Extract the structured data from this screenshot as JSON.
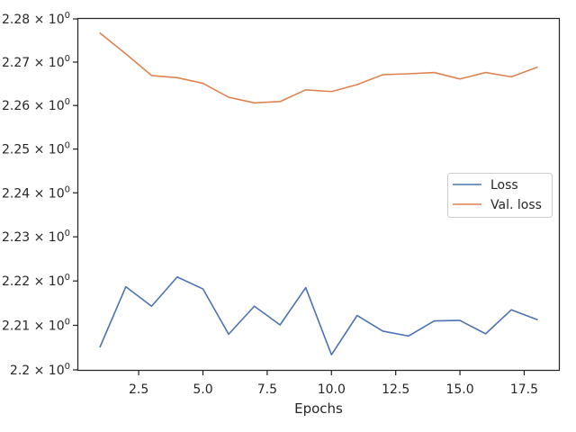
{
  "chart_data": {
    "type": "line",
    "title": "",
    "xlabel": "Epochs",
    "ylabel": "",
    "y_scale": "log",
    "xlim": [
      0.15,
      18.85
    ],
    "ylim": [
      2.2,
      2.28
    ],
    "x_ticks": [
      2.5,
      5.0,
      7.5,
      10.0,
      12.5,
      15.0,
      17.5
    ],
    "x_tick_labels": [
      "2.5",
      "5.0",
      "7.5",
      "10.0",
      "12.5",
      "15.0",
      "17.5"
    ],
    "y_ticks": [
      2.2,
      2.21,
      2.22,
      2.23,
      2.24,
      2.25,
      2.26,
      2.27,
      2.28
    ],
    "y_tick_labels": [
      {
        "mantissa": "2.2",
        "exp": "0"
      },
      {
        "mantissa": "2.21",
        "exp": "0"
      },
      {
        "mantissa": "2.22",
        "exp": "0"
      },
      {
        "mantissa": "2.23",
        "exp": "0"
      },
      {
        "mantissa": "2.24",
        "exp": "0"
      },
      {
        "mantissa": "2.25",
        "exp": "0"
      },
      {
        "mantissa": "2.26",
        "exp": "0"
      },
      {
        "mantissa": "2.27",
        "exp": "0"
      },
      {
        "mantissa": "2.28",
        "exp": "0"
      }
    ],
    "tick_base": "10",
    "grid": false,
    "legend_position": "center-right",
    "x": [
      1,
      2,
      3,
      4,
      5,
      6,
      7,
      8,
      9,
      10,
      11,
      12,
      13,
      14,
      15,
      16,
      17,
      18
    ],
    "series": [
      {
        "name": "Loss",
        "color": "#4c72b0",
        "values": [
          2.2052,
          2.2187,
          2.2143,
          2.2209,
          2.2182,
          2.208,
          2.2143,
          2.2101,
          2.2185,
          2.2034,
          2.2122,
          2.2087,
          2.2076,
          2.211,
          2.2111,
          2.2081,
          2.2135,
          2.2113
        ]
      },
      {
        "name": "Val. loss",
        "color": "#dd8452",
        "values": [
          2.2767,
          2.2719,
          2.2669,
          2.2664,
          2.2651,
          2.2619,
          2.2606,
          2.2609,
          2.2636,
          2.2632,
          2.2648,
          2.2671,
          2.2673,
          2.2676,
          2.2661,
          2.2676,
          2.2666,
          2.2688
        ]
      }
    ]
  }
}
